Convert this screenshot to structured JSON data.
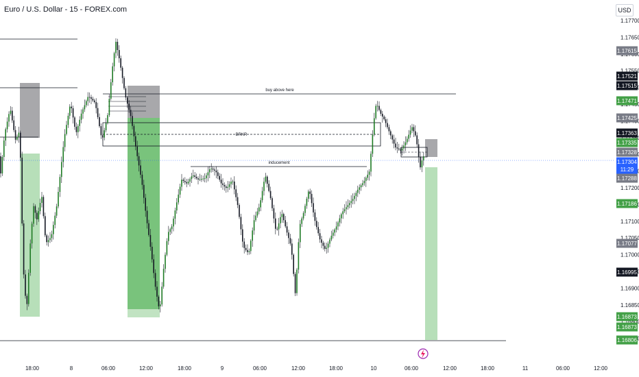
{
  "header": {
    "symbol": "Euro / U.S. Dollar - 15 - FOREX.com",
    "currency": "USD"
  },
  "colors": {
    "up_candle": "#26a69a",
    "candle_body": "#1e7a24",
    "wick": "#131722",
    "supply_zone": "#8b8b8f",
    "demand_zone": "#4caf50",
    "current_price": "#2962ff"
  },
  "chart_data": {
    "type": "candlestick",
    "symbol": "EURUSD",
    "timeframe": "15",
    "ylim": [
      1.1675,
      1.177
    ],
    "x_ticks": [
      "18:00",
      "8",
      "06:00",
      "12:00",
      "18:00",
      "9",
      "06:00",
      "12:00",
      "18:00",
      "10",
      "06:00",
      "12:00",
      "18:00",
      "11",
      "06:00",
      "12:00"
    ],
    "y_ticks": [
      "1.17700",
      "1.17650",
      "1.17600",
      "1.17550",
      "1.17500",
      "1.17450",
      "1.17400",
      "1.17350",
      "1.17300",
      "1.17250",
      "1.17200",
      "1.17150",
      "1.17100",
      "1.17050",
      "1.17000",
      "1.16950",
      "1.16900",
      "1.16850",
      "1.16800",
      "1.16750"
    ],
    "price_labels": [
      {
        "text": "1.17615",
        "style": "gray"
      },
      {
        "text": "1.17521",
        "style": "dark"
      },
      {
        "text": "1.17515",
        "style": "dark"
      },
      {
        "text": "1.17471",
        "style": "green"
      },
      {
        "text": "1.17425",
        "style": "gray"
      },
      {
        "text": "1.17363",
        "style": "dark"
      },
      {
        "text": "1.17335",
        "style": "green"
      },
      {
        "text": "1.17328",
        "style": "gray"
      },
      {
        "text": "1.17304",
        "style": "blue",
        "sub": "11:29"
      },
      {
        "text": "1.17288",
        "style": "gray"
      },
      {
        "text": "1.17186",
        "style": "green"
      },
      {
        "text": "1.17077",
        "style": "gray"
      },
      {
        "text": "1.16995",
        "style": "dark"
      },
      {
        "text": "1.16873",
        "style": "green"
      },
      {
        "text": "1.16873",
        "style": "green"
      },
      {
        "text": "1.16806",
        "style": "green"
      }
    ],
    "current_price": 1.17304,
    "annotations": {
      "buy_above": "buy above here",
      "brkr": "BRKR",
      "inducement": "inducement"
    }
  }
}
